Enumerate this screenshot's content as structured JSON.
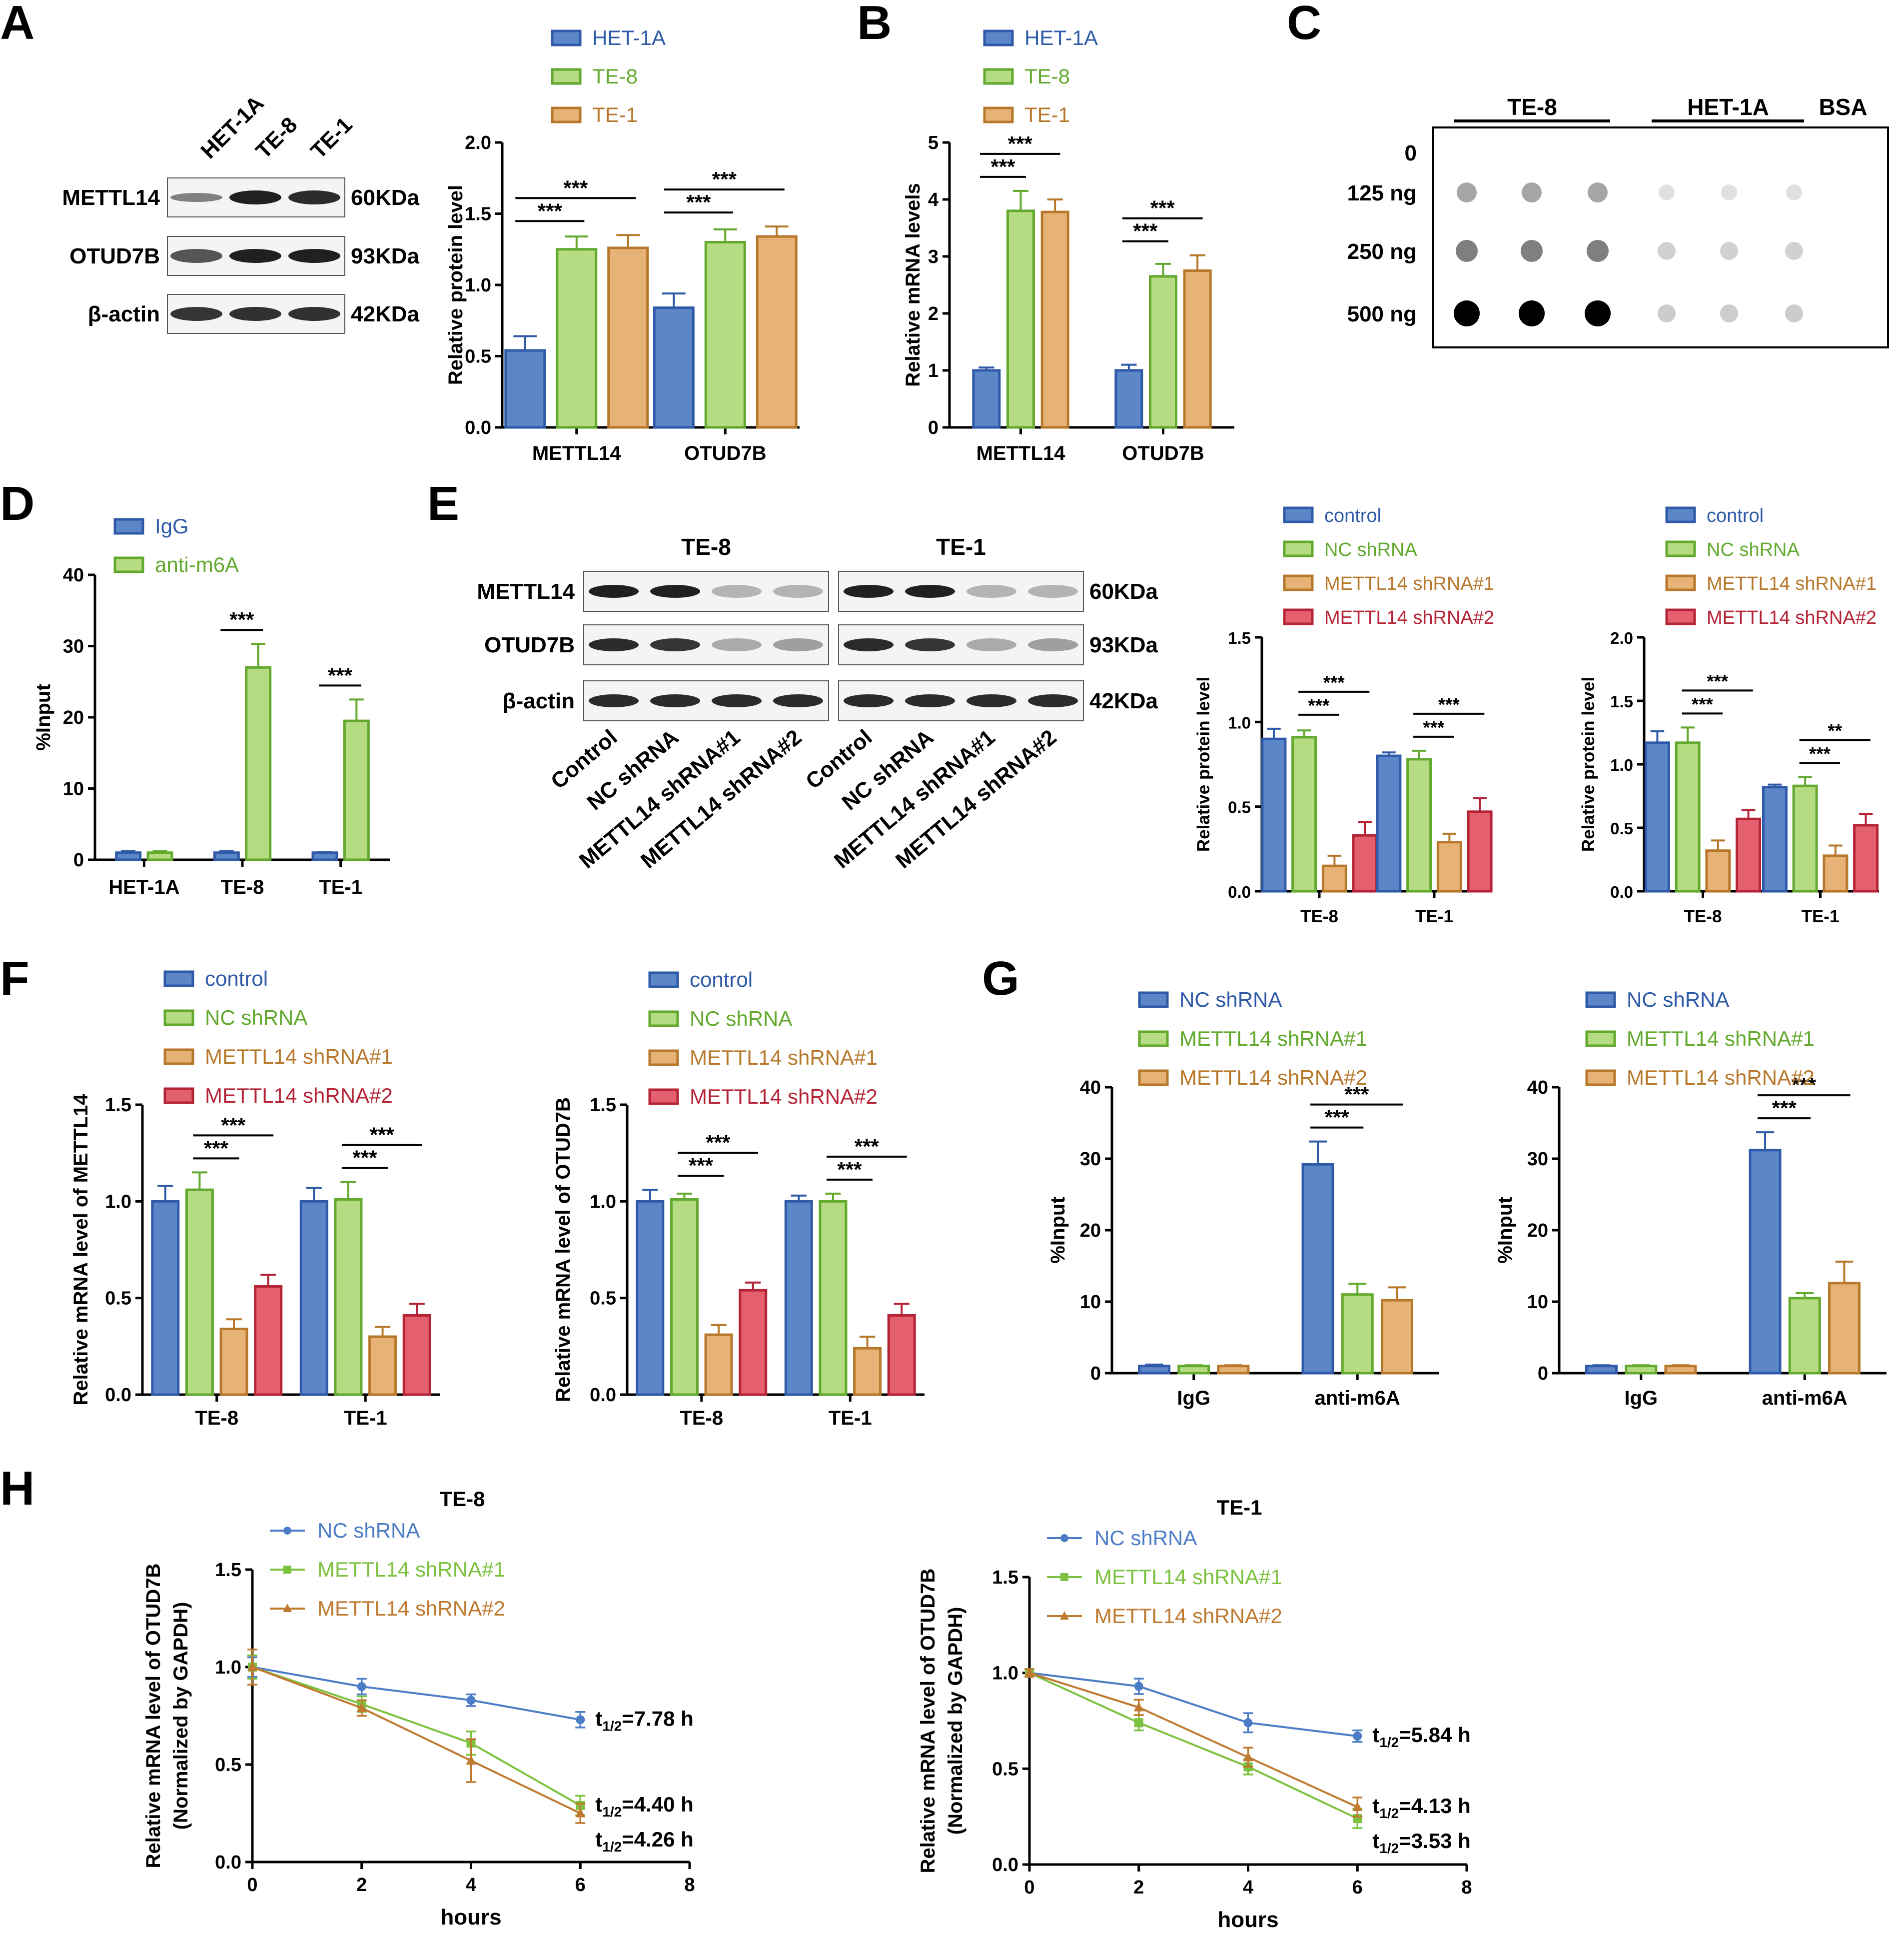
{
  "colors": {
    "blue": "#5b86c8",
    "blueEdge": "#2f5aa8",
    "green": "#b5dc82",
    "greenEdge": "#62a92e",
    "orange": "#e7b276",
    "orangeEdge": "#b7782b",
    "red": "#e4606f",
    "redEdge": "#b52436",
    "axis": "#000000",
    "blot": "#202020"
  },
  "panels": {
    "A": "A",
    "B": "B",
    "C": "C",
    "D": "D",
    "E": "E",
    "F": "F",
    "G": "G",
    "H": "H"
  },
  "blots": {
    "A": {
      "lanes": [
        "HET-1A",
        "TE-8",
        "TE-1"
      ],
      "rows": [
        {
          "label": "METTL14",
          "size": "60KDa"
        },
        {
          "label": "OTUD7B",
          "size": "93KDa"
        },
        {
          "label": "β-actin",
          "size": "42KDa"
        }
      ]
    },
    "E": {
      "groups": [
        "TE-8",
        "TE-1"
      ],
      "lanes": [
        "Control",
        "NC shRNA",
        "METTL14 shRNA#1",
        "METTL14 shRNA#2",
        "Control",
        "NC shRNA",
        "METTL14 shRNA#1",
        "METTL14 shRNA#2"
      ],
      "rows": [
        {
          "label": "METTL14",
          "size": "60KDa"
        },
        {
          "label": "OTUD7B",
          "size": "93KDa"
        },
        {
          "label": "β-actin",
          "size": "42KDa"
        }
      ]
    }
  },
  "dotblot": {
    "groups": [
      "TE-8",
      "HET-1A",
      "BSA"
    ],
    "rows": [
      "0",
      "125 ng",
      "250 ng",
      "500 ng"
    ]
  },
  "chart_data": [
    {
      "id": "A",
      "type": "bar",
      "ylabel": "Relative protein level",
      "ylim": [
        0,
        2.0
      ],
      "yticks": [
        "0.0",
        "0.5",
        "1.0",
        "1.5",
        "2.0"
      ],
      "categories": [
        "METTL14",
        "OTUD7B"
      ],
      "legend": [
        "HET-1A",
        "TE-8",
        "TE-1"
      ],
      "series": [
        {
          "name": "HET-1A",
          "values": [
            0.54,
            0.84
          ],
          "errors": [
            0.1,
            0.1
          ]
        },
        {
          "name": "TE-8",
          "values": [
            1.25,
            1.3
          ],
          "errors": [
            0.09,
            0.09
          ]
        },
        {
          "name": "TE-1",
          "values": [
            1.26,
            1.34
          ],
          "errors": [
            0.09,
            0.07
          ]
        }
      ],
      "sig": [
        {
          "label": "***",
          "cat": 0,
          "from": 0,
          "to": 1,
          "level": 0
        },
        {
          "label": "***",
          "cat": 0,
          "from": 0,
          "to": 2,
          "level": 1
        },
        {
          "label": "***",
          "cat": 1,
          "from": 0,
          "to": 1,
          "level": 0
        },
        {
          "label": "***",
          "cat": 1,
          "from": 0,
          "to": 2,
          "level": 1
        }
      ]
    },
    {
      "id": "B",
      "type": "bar",
      "ylabel": "Relative mRNA levels",
      "ylim": [
        0,
        5
      ],
      "yticks": [
        "0",
        "1",
        "2",
        "3",
        "4",
        "5"
      ],
      "categories": [
        "METTL14",
        "OTUD7B"
      ],
      "legend": [
        "HET-1A",
        "TE-8",
        "TE-1"
      ],
      "series": [
        {
          "name": "HET-1A",
          "values": [
            1.0,
            1.0
          ],
          "errors": [
            0.05,
            0.1
          ]
        },
        {
          "name": "TE-8",
          "values": [
            3.8,
            2.65
          ],
          "errors": [
            0.35,
            0.22
          ]
        },
        {
          "name": "TE-1",
          "values": [
            3.78,
            2.75
          ],
          "errors": [
            0.22,
            0.27
          ]
        }
      ],
      "sig": [
        {
          "label": "***",
          "cat": 0,
          "from": 0,
          "to": 1,
          "level": 0
        },
        {
          "label": "***",
          "cat": 0,
          "from": 0,
          "to": 2,
          "level": 1
        },
        {
          "label": "***",
          "cat": 1,
          "from": 0,
          "to": 1,
          "level": 0
        },
        {
          "label": "***",
          "cat": 1,
          "from": 0,
          "to": 2,
          "level": 1
        }
      ]
    },
    {
      "id": "D",
      "type": "bar",
      "ylabel": "%Input",
      "ylim": [
        0,
        40
      ],
      "yticks": [
        "0",
        "10",
        "20",
        "30",
        "40"
      ],
      "categories": [
        "HET-1A",
        "TE-8",
        "TE-1"
      ],
      "legend": [
        "IgG",
        "anti-m6A"
      ],
      "series": [
        {
          "name": "IgG",
          "values": [
            1,
            1,
            1
          ],
          "errors": [
            0.2,
            0.2,
            0.1
          ]
        },
        {
          "name": "anti-m6A",
          "values": [
            1,
            27,
            19.5
          ],
          "errors": [
            0.2,
            3.3,
            3
          ]
        }
      ],
      "sig": [
        {
          "label": "***",
          "cat": 1,
          "from": 0,
          "to": 1,
          "level": 0
        },
        {
          "label": "***",
          "cat": 2,
          "from": 0,
          "to": 1,
          "level": 0
        }
      ]
    },
    {
      "id": "E1",
      "type": "bar",
      "ylabel": "Relative protein level",
      "ylim": [
        0,
        1.5
      ],
      "yticks": [
        "0.0",
        "0.5",
        "1.0",
        "1.5"
      ],
      "categories": [
        "TE-8",
        "TE-1"
      ],
      "legend": [
        "control",
        "NC shRNA",
        "METTL14 shRNA#1",
        "METTL14 shRNA#2"
      ],
      "series": [
        {
          "name": "control",
          "values": [
            0.9,
            0.8
          ],
          "errors": [
            0.06,
            0.02
          ]
        },
        {
          "name": "NC shRNA",
          "values": [
            0.91,
            0.78
          ],
          "errors": [
            0.04,
            0.05
          ]
        },
        {
          "name": "METTL14 shRNA#1",
          "values": [
            0.15,
            0.29
          ],
          "errors": [
            0.06,
            0.05
          ]
        },
        {
          "name": "METTL14 shRNA#2",
          "values": [
            0.33,
            0.47
          ],
          "errors": [
            0.08,
            0.08
          ]
        }
      ],
      "sig": [
        {
          "label": "***",
          "cat": 0,
          "from": 1,
          "to": 2,
          "level": 0
        },
        {
          "label": "***",
          "cat": 0,
          "from": 1,
          "to": 3,
          "level": 1
        },
        {
          "label": "***",
          "cat": 1,
          "from": 1,
          "to": 2,
          "level": 0
        },
        {
          "label": "***",
          "cat": 1,
          "from": 1,
          "to": 3,
          "level": 1
        }
      ]
    },
    {
      "id": "E2",
      "type": "bar",
      "ylabel": "Relative protein level",
      "ylim": [
        0,
        2.0
      ],
      "yticks": [
        "0.0",
        "0.5",
        "1.0",
        "1.5",
        "2.0"
      ],
      "categories": [
        "TE-8",
        "TE-1"
      ],
      "legend": [
        "control",
        "NC shRNA",
        "METTL14 shRNA#1",
        "METTL14 shRNA#2"
      ],
      "series": [
        {
          "name": "control",
          "values": [
            1.17,
            0.82
          ],
          "errors": [
            0.09,
            0.02
          ]
        },
        {
          "name": "NC shRNA",
          "values": [
            1.17,
            0.83
          ],
          "errors": [
            0.12,
            0.07
          ]
        },
        {
          "name": "METTL14 shRNA#1",
          "values": [
            0.32,
            0.28
          ],
          "errors": [
            0.08,
            0.08
          ]
        },
        {
          "name": "METTL14 shRNA#2",
          "values": [
            0.57,
            0.52
          ],
          "errors": [
            0.07,
            0.09
          ]
        }
      ],
      "sig": [
        {
          "label": "***",
          "cat": 0,
          "from": 1,
          "to": 2,
          "level": 0
        },
        {
          "label": "***",
          "cat": 0,
          "from": 1,
          "to": 3,
          "level": 1
        },
        {
          "label": "***",
          "cat": 1,
          "from": 1,
          "to": 2,
          "level": 0
        },
        {
          "label": "**",
          "cat": 1,
          "from": 1,
          "to": 3,
          "level": 1
        }
      ]
    },
    {
      "id": "F1",
      "type": "bar",
      "ylabel": "Relative mRNA level of METTL14",
      "ylim": [
        0,
        1.5
      ],
      "yticks": [
        "0.0",
        "0.5",
        "1.0",
        "1.5"
      ],
      "categories": [
        "TE-8",
        "TE-1"
      ],
      "legend": [
        "control",
        "NC shRNA",
        "METTL14 shRNA#1",
        "METTL14 shRNA#2"
      ],
      "series": [
        {
          "name": "control",
          "values": [
            1.0,
            1.0
          ],
          "errors": [
            0.08,
            0.07
          ]
        },
        {
          "name": "NC shRNA",
          "values": [
            1.06,
            1.01
          ],
          "errors": [
            0.09,
            0.09
          ]
        },
        {
          "name": "METTL14 shRNA#1",
          "values": [
            0.34,
            0.3
          ],
          "errors": [
            0.05,
            0.05
          ]
        },
        {
          "name": "METTL14 shRNA#2",
          "values": [
            0.56,
            0.41
          ],
          "errors": [
            0.06,
            0.06
          ]
        }
      ],
      "sig": [
        {
          "label": "***",
          "cat": 0,
          "from": 1,
          "to": 2,
          "level": 0
        },
        {
          "label": "***",
          "cat": 0,
          "from": 1,
          "to": 3,
          "level": 1
        },
        {
          "label": "***",
          "cat": 1,
          "from": 1,
          "to": 2,
          "level": 0
        },
        {
          "label": "***",
          "cat": 1,
          "from": 1,
          "to": 3,
          "level": 1
        }
      ]
    },
    {
      "id": "F2",
      "type": "bar",
      "ylabel": "Relative mRNA level of OTUD7B",
      "ylim": [
        0,
        1.5
      ],
      "yticks": [
        "0.0",
        "0.5",
        "1.0",
        "1.5"
      ],
      "categories": [
        "TE-8",
        "TE-1"
      ],
      "legend": [
        "control",
        "NC shRNA",
        "METTL14 shRNA#1",
        "METTL14 shRNA#2"
      ],
      "series": [
        {
          "name": "control",
          "values": [
            1.0,
            1.0
          ],
          "errors": [
            0.06,
            0.03
          ]
        },
        {
          "name": "NC shRNA",
          "values": [
            1.01,
            1.0
          ],
          "errors": [
            0.03,
            0.04
          ]
        },
        {
          "name": "METTL14 shRNA#1",
          "values": [
            0.31,
            0.24
          ],
          "errors": [
            0.05,
            0.06
          ]
        },
        {
          "name": "METTL14 shRNA#2",
          "values": [
            0.54,
            0.41
          ],
          "errors": [
            0.04,
            0.06
          ]
        }
      ],
      "sig": [
        {
          "label": "***",
          "cat": 0,
          "from": 1,
          "to": 2,
          "level": 0
        },
        {
          "label": "***",
          "cat": 0,
          "from": 1,
          "to": 3,
          "level": 1
        },
        {
          "label": "***",
          "cat": 1,
          "from": 1,
          "to": 2,
          "level": 0
        },
        {
          "label": "***",
          "cat": 1,
          "from": 1,
          "to": 3,
          "level": 1
        }
      ]
    },
    {
      "id": "G1",
      "type": "bar",
      "ylabel": "%Input",
      "ylim": [
        0,
        40
      ],
      "yticks": [
        "0",
        "10",
        "20",
        "30",
        "40"
      ],
      "categories": [
        "IgG",
        "anti-m6A"
      ],
      "legend": [
        "NC shRNA",
        "METTL14 shRNA#1",
        "METTL14 shRNA#2"
      ],
      "series": [
        {
          "name": "NC shRNA",
          "values": [
            1,
            29.2
          ],
          "errors": [
            0.2,
            3.2
          ]
        },
        {
          "name": "METTL14 shRNA#1",
          "values": [
            1,
            11
          ],
          "errors": [
            0.1,
            1.5
          ]
        },
        {
          "name": "METTL14 shRNA#2",
          "values": [
            1,
            10.2
          ],
          "errors": [
            0.1,
            1.8
          ]
        }
      ],
      "sig": [
        {
          "label": "***",
          "cat": 1,
          "from": 0,
          "to": 1,
          "level": 0
        },
        {
          "label": "***",
          "cat": 1,
          "from": 0,
          "to": 2,
          "level": 1
        }
      ]
    },
    {
      "id": "G2",
      "type": "bar",
      "ylabel": "%Input",
      "ylim": [
        0,
        40
      ],
      "yticks": [
        "0",
        "10",
        "20",
        "30",
        "40"
      ],
      "categories": [
        "IgG",
        "anti-m6A"
      ],
      "legend": [
        "NC shRNA",
        "METTL14 shRNA#1",
        "METTL14 shRNA#2"
      ],
      "series": [
        {
          "name": "NC shRNA",
          "values": [
            1,
            31.2
          ],
          "errors": [
            0.1,
            2.5
          ]
        },
        {
          "name": "METTL14 shRNA#1",
          "values": [
            1,
            10.5
          ],
          "errors": [
            0.1,
            0.7
          ]
        },
        {
          "name": "METTL14 shRNA#2",
          "values": [
            1,
            12.6
          ],
          "errors": [
            0.1,
            3
          ]
        }
      ],
      "sig": [
        {
          "label": "***",
          "cat": 1,
          "from": 0,
          "to": 1,
          "level": 0
        },
        {
          "label": "***",
          "cat": 1,
          "from": 0,
          "to": 2,
          "level": 1
        }
      ]
    },
    {
      "id": "H1",
      "type": "line",
      "title": "TE-8",
      "xlabel": "hours",
      "ylabel": "Relative mRNA level of OTUD7B",
      "ylabel2": "(Normalized by GAPDH)",
      "xlim": [
        0,
        8
      ],
      "xticks": [
        "0",
        "2",
        "4",
        "6",
        "8"
      ],
      "ylim": [
        0,
        1.5
      ],
      "yticks": [
        "0.0",
        "0.5",
        "1.0",
        "1.5"
      ],
      "x": [
        0,
        2,
        4,
        6
      ],
      "legend": [
        "NC shRNA",
        "METTL14 shRNA#1",
        "METTL14 shRNA#2"
      ],
      "series": [
        {
          "name": "NC shRNA",
          "values": [
            1.0,
            0.9,
            0.83,
            0.73
          ],
          "errors": [
            0.05,
            0.04,
            0.03,
            0.04
          ],
          "halflife": "=7.78 h"
        },
        {
          "name": "METTL14 shRNA#1",
          "values": [
            1.0,
            0.81,
            0.61,
            0.29
          ],
          "errors": [
            0.06,
            0.04,
            0.06,
            0.05
          ],
          "halflife": "=4.40 h"
        },
        {
          "name": "METTL14 shRNA#2",
          "values": [
            1.0,
            0.79,
            0.52,
            0.25
          ],
          "errors": [
            0.09,
            0.04,
            0.11,
            0.05
          ],
          "halflife": "=4.26 h"
        }
      ]
    },
    {
      "id": "H2",
      "type": "line",
      "title": "TE-1",
      "xlabel": "hours",
      "ylabel": "Relative mRNA level of OTUD7B",
      "ylabel2": "(Normalized by GAPDH)",
      "xlim": [
        0,
        8
      ],
      "xticks": [
        "0",
        "2",
        "4",
        "6",
        "8"
      ],
      "ylim": [
        0,
        1.5
      ],
      "yticks": [
        "0.0",
        "0.5",
        "1.0",
        "1.5"
      ],
      "x": [
        0,
        2,
        4,
        6
      ],
      "legend": [
        "NC shRNA",
        "METTL14 shRNA#1",
        "METTL14 shRNA#2"
      ],
      "series": [
        {
          "name": "NC shRNA",
          "values": [
            1.0,
            0.93,
            0.74,
            0.67
          ],
          "errors": [
            0.02,
            0.04,
            0.05,
            0.03
          ],
          "halflife": "=5.84 h"
        },
        {
          "name": "METTL14 shRNA#1",
          "values": [
            1.0,
            0.74,
            0.51,
            0.24
          ],
          "errors": [
            0.02,
            0.04,
            0.04,
            0.05
          ],
          "halflife": "=3.53 h"
        },
        {
          "name": "METTL14 shRNA#2",
          "values": [
            1.0,
            0.82,
            0.56,
            0.3
          ],
          "errors": [
            0.02,
            0.04,
            0.05,
            0.05
          ],
          "halflife": "=4.13 h"
        }
      ]
    }
  ]
}
